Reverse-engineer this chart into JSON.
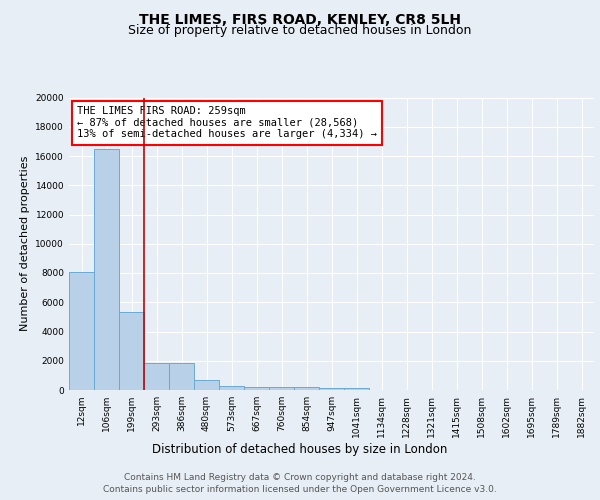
{
  "title": "THE LIMES, FIRS ROAD, KENLEY, CR8 5LH",
  "subtitle": "Size of property relative to detached houses in London",
  "xlabel": "Distribution of detached houses by size in London",
  "ylabel": "Number of detached properties",
  "categories": [
    "12sqm",
    "106sqm",
    "199sqm",
    "293sqm",
    "386sqm",
    "480sqm",
    "573sqm",
    "667sqm",
    "760sqm",
    "854sqm",
    "947sqm",
    "1041sqm",
    "1134sqm",
    "1228sqm",
    "1321sqm",
    "1415sqm",
    "1508sqm",
    "1602sqm",
    "1695sqm",
    "1789sqm",
    "1882sqm"
  ],
  "values": [
    8100,
    16500,
    5300,
    1850,
    1850,
    700,
    300,
    230,
    200,
    175,
    150,
    130,
    0,
    0,
    0,
    0,
    0,
    0,
    0,
    0,
    0
  ],
  "bar_color": "#b8d0e8",
  "bar_edge_color": "#6aaad4",
  "annotation_box_text": "THE LIMES FIRS ROAD: 259sqm\n← 87% of detached houses are smaller (28,568)\n13% of semi-detached houses are larger (4,334) →",
  "vline_x": 2.5,
  "vline_color": "#cc0000",
  "ylim": [
    0,
    20000
  ],
  "yticks": [
    0,
    2000,
    4000,
    6000,
    8000,
    10000,
    12000,
    14000,
    16000,
    18000,
    20000
  ],
  "bg_color": "#e8eef5",
  "plot_bg_color": "#e8eef5",
  "footer_line1": "Contains HM Land Registry data © Crown copyright and database right 2024.",
  "footer_line2": "Contains public sector information licensed under the Open Government Licence v3.0.",
  "title_fontsize": 10,
  "subtitle_fontsize": 9,
  "annotation_fontsize": 7.5,
  "footer_fontsize": 6.5,
  "ylabel_fontsize": 8,
  "xlabel_fontsize": 8.5,
  "tick_fontsize": 6.5
}
